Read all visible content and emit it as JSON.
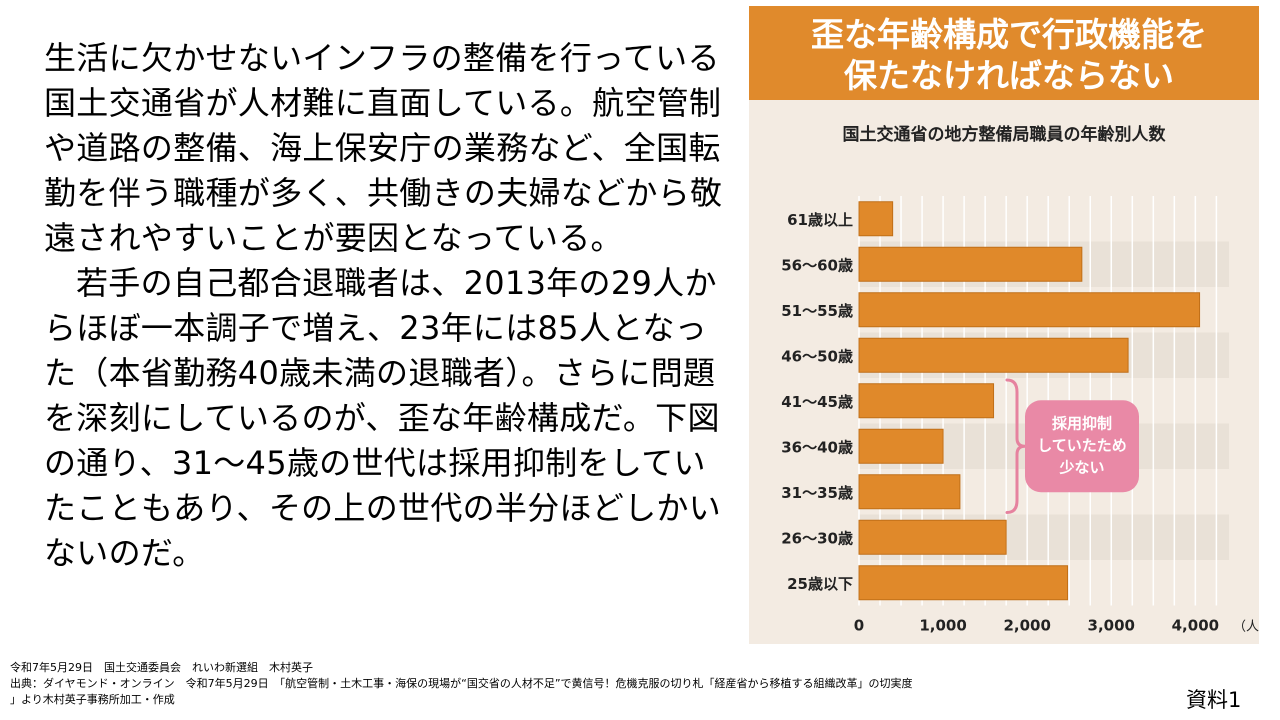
{
  "body": {
    "paragraph1": "生活に欠かせないインフラの整備を行っている国土交通省が人材難に直面している。航空管制や道路の整備、海上保安庁の業務など、全国転勤を伴う職種が多く、共働きの夫婦などから敬遠されやすいことが要因となっている。",
    "paragraph2": "若手の自己都合退職者は、2013年の29人からほぼ一本調子で増え、23年には85人となった（本省勤務40歳未満の退職者）。さらに問題を深刻にしているのが、歪な年齢構成だ。下図の通り、31～45歳の世代は採用抑制をしていたこともあり、その上の世代の半分ほどしかいないのだ。"
  },
  "chart_panel": {
    "headline_line1": "歪な年齢構成で行政機能を",
    "headline_line2": "保たなければならない",
    "subtitle": "国土交通省の地方整備局職員の年齢別人数",
    "callout_lines": [
      "採用抑制",
      "していたため",
      "少ない"
    ]
  },
  "chart_data": {
    "type": "bar",
    "orientation": "horizontal",
    "title": "国土交通省の地方整備局職員の年齢別人数",
    "categories": [
      "61歳以上",
      "56～60歳",
      "51～55歳",
      "46～50歳",
      "41～45歳",
      "36～40歳",
      "31～35歳",
      "26～30歳",
      "25歳以下"
    ],
    "values": [
      400,
      2650,
      4050,
      3200,
      1600,
      1000,
      1200,
      1750,
      2480
    ],
    "xlabel": "",
    "unit": "（人）",
    "xlim": [
      0,
      4400
    ],
    "xticks": [
      0,
      1000,
      2000,
      3000,
      4000
    ],
    "xtick_labels": [
      "0",
      "1,000",
      "2,000",
      "3,000",
      "4,000"
    ],
    "annotation": "採用抑制していたため少ない",
    "annotated_categories": [
      "41～45歳",
      "36～40歳",
      "31～35歳"
    ],
    "grid": true,
    "colors": {
      "bar": "#e0892a",
      "bar_stroke": "#c06f18",
      "panel_bg": "#f3ebe2",
      "band": "#e9e1d7",
      "grid": "#ffffff",
      "callout_fill": "#e989a6",
      "callout_text": "#ffffff",
      "bracket": "#e6829f"
    }
  },
  "footer": {
    "line1": "令和7年5月29日　国土交通委員会　れいわ新選組　木村英子",
    "line2": "出典：ダイヤモンド・オンライン　令和7年5月29日　「航空管制・土木工事・海保の現場が“国交省の人材不足”で黄信号！危機克服の切り札「経産省から移植する組織改革」の切実度",
    "line3": "」より木村英子事務所加工・作成"
  },
  "slide_label": "資料1"
}
